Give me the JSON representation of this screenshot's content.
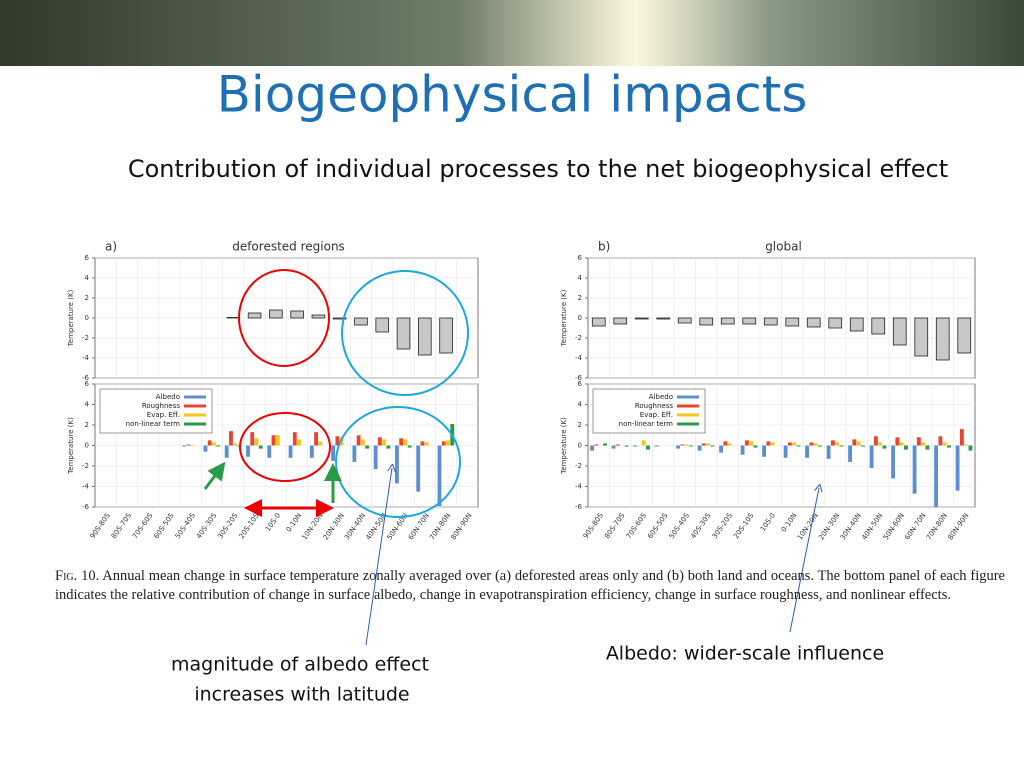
{
  "slide": {
    "title": "Biogeophysical impacts",
    "subtitle": "Contribution of individual processes to the net biogeophysical effect",
    "caption_label": "Fig. 10.",
    "caption_text": "Annual mean change in surface temperature zonally averaged over (a) deforested areas only and (b) both land and oceans. The bottom panel of each figure indicates the relative contribution of change in surface albedo, change in evapotranspiration efficiency, change in surface roughness, and nonlinear effects.",
    "annotation_left": [
      "magnitude of albedo effect",
      "increases with latitude"
    ],
    "annotation_right": "Albedo: wider-scale influence"
  },
  "chart_data": [
    {
      "type": "bar",
      "panel_label": "a)",
      "title": "deforested regions",
      "ylabel": "Temperature (K)",
      "color": "#c8c8c8",
      "values": [
        null,
        null,
        null,
        null,
        0,
        0,
        0.05,
        0.5,
        0.8,
        0.7,
        0.3,
        -0.1,
        -0.7,
        -1.4,
        -3.1,
        -3.7,
        -3.5,
        null
      ],
      "ylim": [
        -6,
        6
      ],
      "yticks": [
        -6,
        -4,
        -2,
        0,
        2,
        4,
        6
      ],
      "grid": true
    },
    {
      "type": "bar",
      "ylabel": "Temperature (K)",
      "legend": "upper left",
      "categories": [
        "90S-80S",
        "80S-70S",
        "70S-60S",
        "60S-50S",
        "50S-40S",
        "40S-30S",
        "30S-20S",
        "20S-10S",
        "10S-0",
        "0-10N",
        "10N-20N",
        "20N-30N",
        "30N-40N",
        "40N-50N",
        "50N-60N",
        "60N-70N",
        "70N-80N",
        "80N-90N"
      ],
      "series": [
        {
          "name": "Albedo",
          "color": "#5b8fd0",
          "values": [
            null,
            null,
            null,
            null,
            -0.1,
            -0.6,
            -1.2,
            -1.1,
            -1.2,
            -1.2,
            -1.2,
            -1.5,
            -1.6,
            -2.3,
            -3.7,
            -4.5,
            -5.9,
            null
          ]
        },
        {
          "name": "Roughness",
          "color": "#e8452c",
          "values": [
            null,
            null,
            null,
            null,
            0.1,
            0.5,
            1.4,
            1.3,
            1.0,
            1.3,
            1.3,
            0.9,
            1.0,
            0.8,
            0.7,
            0.4,
            0.4,
            null
          ]
        },
        {
          "name": "Evap. Eff.",
          "color": "#f5c518",
          "values": [
            null,
            null,
            null,
            null,
            0.05,
            0.3,
            0.2,
            0.7,
            1.0,
            0.6,
            0.4,
            0.8,
            0.6,
            0.6,
            0.6,
            0.3,
            0.5,
            null
          ]
        },
        {
          "name": "non-linear term",
          "color": "#2a9a47",
          "values": [
            null,
            null,
            null,
            null,
            0,
            -0.1,
            -0.1,
            -0.3,
            0,
            0,
            0,
            0,
            -0.3,
            -0.3,
            -0.2,
            0,
            2.1,
            null
          ]
        }
      ],
      "ylim": [
        -6,
        6
      ],
      "yticks": [
        -6,
        -4,
        -2,
        0,
        2,
        4,
        6
      ],
      "grid": true
    },
    {
      "type": "bar",
      "panel_label": "b)",
      "title": "global",
      "ylabel": "Temperature (K)",
      "color": "#c8c8c8",
      "values": [
        -0.8,
        -0.6,
        -0.1,
        -0.1,
        -0.5,
        -0.7,
        -0.6,
        -0.6,
        -0.7,
        -0.8,
        -0.9,
        -1.0,
        -1.3,
        -1.6,
        -2.7,
        -3.8,
        -4.2,
        -3.5
      ],
      "ylim": [
        -6,
        6
      ],
      "yticks": [
        -6,
        -4,
        -2,
        0,
        2,
        4,
        6
      ],
      "grid": true
    },
    {
      "type": "bar",
      "ylabel": "Temperature (K)",
      "legend": "upper left",
      "categories": [
        "90S-80S",
        "80S-70S",
        "70S-60S",
        "60S-50S",
        "50S-40S",
        "40S-30S",
        "30S-20S",
        "20S-10S",
        "10S-0",
        "0-10N",
        "10N-20N",
        "20N-30N",
        "30N-40N",
        "40N-50N",
        "50N-60N",
        "60N-70N",
        "70N-80N",
        "80N-90N"
      ],
      "series": [
        {
          "name": "Albedo",
          "color": "#5b8fd0",
          "values": [
            -0.5,
            -0.3,
            -0.1,
            -0.1,
            -0.3,
            -0.5,
            -0.7,
            -0.9,
            -1.1,
            -1.2,
            -1.2,
            -1.3,
            -1.6,
            -2.2,
            -3.2,
            -4.7,
            -6,
            -4.4
          ]
        },
        {
          "name": "Roughness",
          "color": "#e8452c",
          "values": [
            0.1,
            0.1,
            0,
            0,
            0.1,
            0.2,
            0.4,
            0.5,
            0.4,
            0.3,
            0.3,
            0.5,
            0.6,
            0.9,
            0.8,
            0.8,
            0.9,
            1.6
          ]
        },
        {
          "name": "Evap. Eff.",
          "color": "#f5c518",
          "values": [
            0,
            0,
            0.5,
            0,
            0.1,
            0.2,
            0.2,
            0.4,
            0.3,
            0.3,
            0.2,
            0.3,
            0.4,
            0.3,
            0.3,
            0.3,
            0.3,
            0.1
          ]
        },
        {
          "name": "non-linear term",
          "color": "#2a9a47",
          "values": [
            0.2,
            -0.1,
            -0.4,
            0,
            -0.1,
            -0.1,
            0,
            -0.2,
            0,
            -0.1,
            -0.1,
            -0.1,
            -0.1,
            -0.3,
            -0.4,
            -0.4,
            -0.2,
            -0.5
          ]
        }
      ],
      "ylim": [
        -6,
        6
      ],
      "yticks": [
        -6,
        -4,
        -2,
        0,
        2,
        4,
        6
      ],
      "grid": true
    }
  ]
}
